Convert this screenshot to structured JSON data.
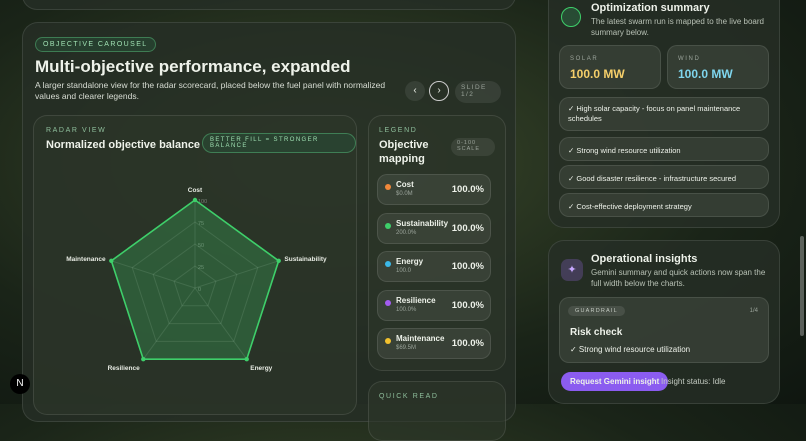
{
  "carousel": {
    "badge": "OBJECTIVE CAROUSEL",
    "title": "Multi-objective performance, expanded",
    "description": "A larger standalone view for the radar scorecard, placed below the fuel panel with normalized values and clearer legends.",
    "slide": "SLIDE 1/2"
  },
  "chart_data": {
    "type": "radar",
    "eyebrow": "RADAR VIEW",
    "title": "Normalized objective balance",
    "badge": "BETTER FILL = STRONGER BALANCE",
    "categories": [
      "Cost",
      "Sustainability",
      "Energy",
      "Resilience",
      "Maintenance"
    ],
    "values": [
      100,
      100,
      100,
      100,
      100
    ],
    "ylim": [
      0,
      100
    ],
    "yticks": [
      0,
      25,
      50,
      75,
      100
    ],
    "color": "#3ecf6a",
    "grid": true
  },
  "legend": {
    "eyebrow": "LEGEND",
    "title": "Objective mapping",
    "scale": "0-100 SCALE",
    "items": [
      {
        "name": "Cost",
        "detail": "$0.0M",
        "value": "100.0%",
        "color": "#f0883a"
      },
      {
        "name": "Sustainability",
        "detail": "200.0%",
        "value": "100.0%",
        "color": "#3ecf6a"
      },
      {
        "name": "Energy",
        "detail": "100.0",
        "value": "100.0%",
        "color": "#3bb8e8"
      },
      {
        "name": "Resilience",
        "detail": "100.0%",
        "value": "100.0%",
        "color": "#a35cf0"
      },
      {
        "name": "Maintenance",
        "detail": "$69.5M",
        "value": "100.0%",
        "color": "#f2c12e"
      }
    ]
  },
  "quick_read": "QUICK READ",
  "optimization": {
    "title": "Optimization summary",
    "subtitle": "The latest swarm run is mapped to the live board summary below.",
    "solar": {
      "label": "SOLAR",
      "value": "100.0 MW"
    },
    "wind": {
      "label": "WIND",
      "value": "100.0 MW"
    },
    "items": [
      "✓ High solar capacity - focus on panel maintenance schedules",
      "✓ Strong wind resource utilization",
      "✓ Good disaster resilience - infrastructure secured",
      "✓ Cost-effective deployment strategy"
    ]
  },
  "insights": {
    "title": "Operational insights",
    "subtitle": "Gemini summary and quick actions now span the full width below the charts.",
    "card": {
      "tag": "GUARDRAIL",
      "counter": "1/4",
      "title": "Risk check",
      "text": "✓ Strong wind resource utilization"
    },
    "button": "Request Gemini insight",
    "status": "Insight status: Idle"
  },
  "nav_icon": "N"
}
